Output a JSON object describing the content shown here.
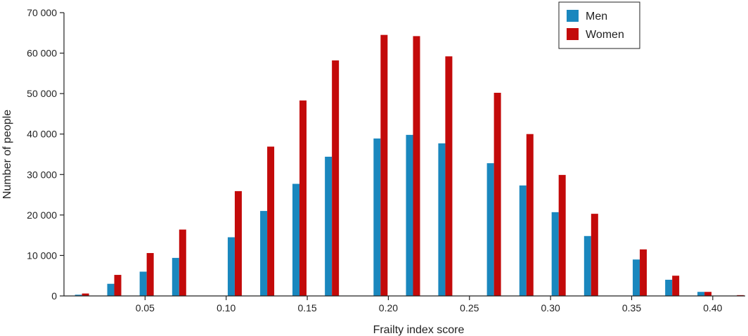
{
  "chart_data": {
    "type": "bar",
    "title": "",
    "xlabel": "Frailty index score",
    "ylabel": "Number of people",
    "xlim": [
      0,
      0.42
    ],
    "ylim": [
      0,
      70000
    ],
    "xticks": [
      0.05,
      0.1,
      0.15,
      0.2,
      0.25,
      0.3,
      0.35,
      0.4
    ],
    "xtick_labels": [
      "0.05",
      "0.10",
      "0.15",
      "0.20",
      "0.25",
      "0.30",
      "0.35",
      "0.40"
    ],
    "yticks": [
      0,
      10000,
      20000,
      30000,
      40000,
      50000,
      60000,
      70000
    ],
    "ytick_labels": [
      "0",
      "10 000",
      "20 000",
      "30 000",
      "40 000",
      "50 000",
      "60 000",
      "70 000"
    ],
    "legend_position": "top-right",
    "grid": false,
    "x": [
      0.0111,
      0.031,
      0.051,
      0.071,
      0.1053,
      0.1253,
      0.1452,
      0.1652,
      0.1952,
      0.2152,
      0.2351,
      0.2651,
      0.2851,
      0.305,
      0.325,
      0.355,
      0.375,
      0.3949,
      0.4149
    ],
    "series": [
      {
        "name": "Men",
        "color": "#1a87be",
        "values": [
          300,
          3000,
          6000,
          9400,
          14500,
          21000,
          27700,
          34400,
          38900,
          39800,
          37700,
          32800,
          27300,
          20700,
          14800,
          9000,
          4000,
          1000,
          0
        ]
      },
      {
        "name": "Women",
        "color": "#c30a0a",
        "values": [
          600,
          5200,
          10600,
          16400,
          25900,
          36900,
          48300,
          58200,
          64500,
          64200,
          59200,
          50200,
          40000,
          29900,
          20300,
          11500,
          5000,
          1000,
          200
        ]
      }
    ]
  }
}
